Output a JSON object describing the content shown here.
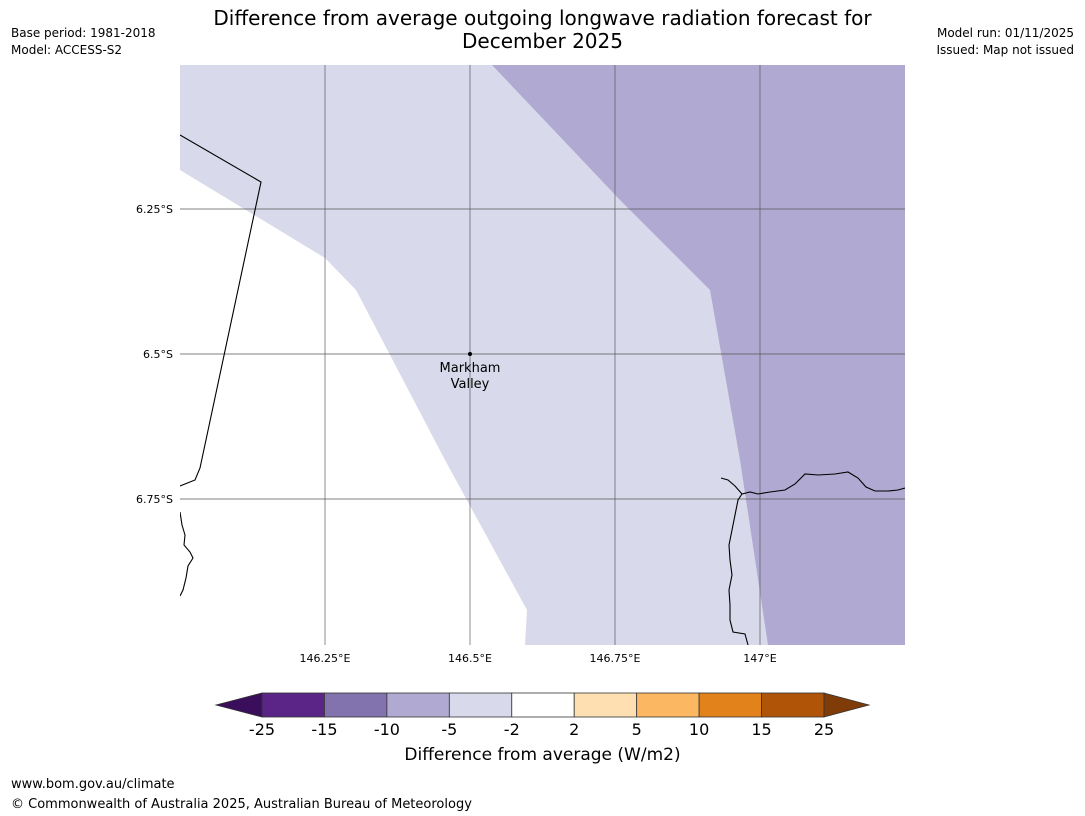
{
  "header": {
    "base_period": "Base period: 1981-2018",
    "model": "Model: ACCESS-S2",
    "model_run": "Model run: 01/11/2025",
    "issued": "Issued: Map not issued",
    "title_line1": "Difference from average outgoing longwave radiation forecast for",
    "title_line2": "December 2025"
  },
  "map": {
    "lat_labels": [
      "6.25°S",
      "6.5°S",
      "6.75°S"
    ],
    "lon_labels": [
      "146.25°E",
      "146.5°E",
      "146.75°E",
      "147°E"
    ],
    "place": {
      "name_line1": "Markham",
      "name_line2": "Valley"
    },
    "category_colors": {
      "-10 to -5": "#b0aad2",
      "-5 to -2": "#d8d9ea",
      "-2 to 2": "#ffffff"
    }
  },
  "colorbar": {
    "ticks": [
      "-25",
      "-15",
      "-10",
      "-5",
      "-2",
      "2",
      "5",
      "10",
      "15",
      "25"
    ],
    "colors": [
      "#5b2588",
      "#8272ae",
      "#b0aad2",
      "#d8d9ea",
      "#ffffff",
      "#fedfb2",
      "#fbb762",
      "#e1821b",
      "#b05508"
    ],
    "extend_low": "#3b0e5c",
    "extend_high": "#7f3b08",
    "label": "Difference from average (W/m2)"
  },
  "footer": {
    "url": "www.bom.gov.au/climate",
    "copyright": "© Commonwealth of Australia 2025, Australian Bureau of Meteorology"
  }
}
